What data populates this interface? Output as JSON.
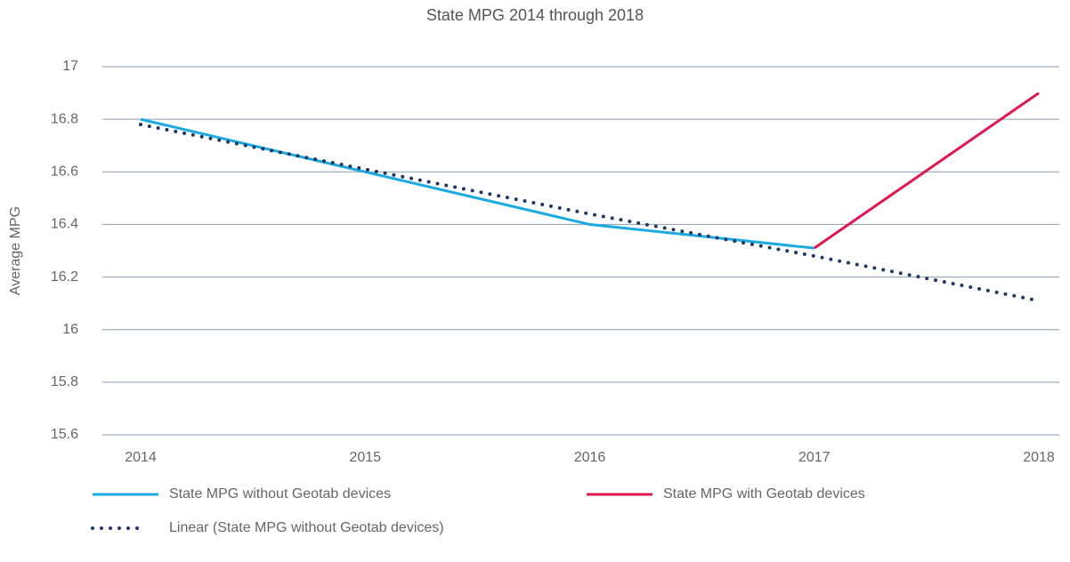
{
  "chart_data": {
    "type": "line",
    "title": "State MPG 2014 through 2018",
    "y_label": "Average MPG",
    "categories": [
      "2014",
      "2015",
      "2016",
      "2017",
      "2018"
    ],
    "series": [
      {
        "name": "State MPG without Geotab devices",
        "color": "#1aa9e0",
        "values": [
          16.8,
          16.6,
          16.4,
          16.31,
          null
        ]
      },
      {
        "name": "State MPG with Geotab devices",
        "color": "#e0174f",
        "values": [
          null,
          null,
          null,
          16.31,
          16.9
        ]
      },
      {
        "name": "Linear (State MPG without Geotab devices)",
        "color": "#1f3864",
        "dash": "dotted",
        "values": [
          16.78,
          16.61,
          16.44,
          16.28,
          16.11
        ]
      }
    ],
    "ylim": [
      15.6,
      17
    ],
    "yticks": [
      17,
      16.8,
      16.6,
      16.4,
      16.2,
      16,
      15.8,
      15.6
    ],
    "grid": true
  }
}
